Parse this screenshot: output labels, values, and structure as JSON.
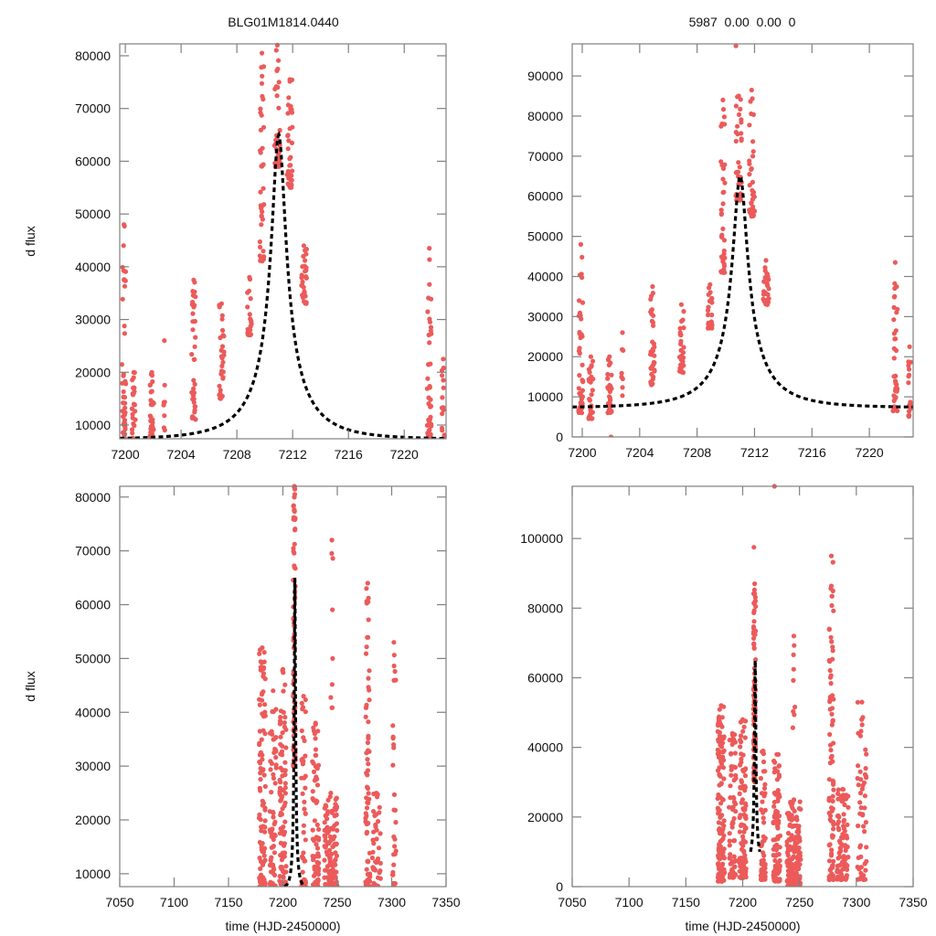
{
  "figure": {
    "titles": {
      "left": "BLG01M1814.0440",
      "right": "5987  0.00  0.00  0"
    },
    "point_color": "#ec5a5a",
    "model_color": "#000000"
  },
  "chart_data": [
    {
      "id": "top-left",
      "type": "scatter",
      "title": "BLG01M1814.0440",
      "xlabel": "",
      "ylabel": "d flux",
      "xlim": [
        7199.6,
        7223.0
      ],
      "ylim": [
        7400,
        82250
      ],
      "xticks": [
        7200,
        7204,
        7208,
        7212,
        7216,
        7220
      ],
      "yticks": [
        10000,
        20000,
        30000,
        40000,
        50000,
        60000,
        70000,
        80000
      ],
      "grid": false,
      "model": {
        "type": "paczynski",
        "t0": 7211.0,
        "u0": 0.12,
        "tE": 4.2,
        "baseline": 7300,
        "peak": 65000
      },
      "clusters": [
        {
          "t": 7199.9,
          "spread": 0.15,
          "ymin": 7500,
          "ymax": 48000,
          "n": 40
        },
        {
          "t": 7200.6,
          "spread": 0.12,
          "ymin": 7500,
          "ymax": 20000,
          "n": 22
        },
        {
          "t": 7201.9,
          "spread": 0.15,
          "ymin": 7600,
          "ymax": 20000,
          "n": 30
        },
        {
          "t": 7202.8,
          "spread": 0.06,
          "ymin": 9000,
          "ymax": 26000,
          "n": 7
        },
        {
          "t": 7204.9,
          "spread": 0.15,
          "ymin": 11000,
          "ymax": 37500,
          "n": 35
        },
        {
          "t": 7206.9,
          "spread": 0.18,
          "ymin": 15000,
          "ymax": 33000,
          "n": 30
        },
        {
          "t": 7208.9,
          "spread": 0.15,
          "ymin": 27000,
          "ymax": 38000,
          "n": 22
        },
        {
          "t": 7209.8,
          "spread": 0.15,
          "ymin": 41000,
          "ymax": 80500,
          "n": 40
        },
        {
          "t": 7210.9,
          "spread": 0.2,
          "ymin": 59000,
          "ymax": 82000,
          "n": 35
        },
        {
          "t": 7211.8,
          "spread": 0.2,
          "ymin": 55000,
          "ymax": 75500,
          "n": 35
        },
        {
          "t": 7212.8,
          "spread": 0.2,
          "ymin": 33000,
          "ymax": 44000,
          "n": 30
        },
        {
          "t": 7221.8,
          "spread": 0.15,
          "ymin": 7500,
          "ymax": 43500,
          "n": 40
        },
        {
          "t": 7222.8,
          "spread": 0.1,
          "ymin": 7500,
          "ymax": 22500,
          "n": 15
        }
      ]
    },
    {
      "id": "top-right",
      "type": "scatter",
      "title": "5987  0.00  0.00  0",
      "xlabel": "",
      "ylabel": "",
      "xlim": [
        7199.3,
        7223.05
      ],
      "ylim": [
        0,
        98000
      ],
      "xticks": [
        7200,
        7204,
        7208,
        7212,
        7216,
        7220
      ],
      "yticks": [
        0,
        10000,
        20000,
        30000,
        40000,
        50000,
        60000,
        70000,
        80000,
        90000
      ],
      "grid": false,
      "model": {
        "type": "paczynski",
        "t0": 7211.0,
        "u0": 0.12,
        "tE": 4.2,
        "baseline": 7300,
        "peak": 65000
      },
      "clusters": [
        {
          "t": 7199.9,
          "spread": 0.15,
          "ymin": 6000,
          "ymax": 48000,
          "n": 45
        },
        {
          "t": 7200.6,
          "spread": 0.15,
          "ymin": 4500,
          "ymax": 20000,
          "n": 30
        },
        {
          "t": 7201.9,
          "spread": 0.15,
          "ymin": 6000,
          "ymax": 20000,
          "n": 30
        },
        {
          "t": 7202.0,
          "spread": 0.01,
          "ymin": 0,
          "ymax": 200,
          "n": 1
        },
        {
          "t": 7202.8,
          "spread": 0.06,
          "ymin": 9000,
          "ymax": 26000,
          "n": 7
        },
        {
          "t": 7204.9,
          "spread": 0.15,
          "ymin": 13000,
          "ymax": 37500,
          "n": 35
        },
        {
          "t": 7206.9,
          "spread": 0.18,
          "ymin": 16000,
          "ymax": 33000,
          "n": 30
        },
        {
          "t": 7208.9,
          "spread": 0.15,
          "ymin": 27000,
          "ymax": 38000,
          "n": 22
        },
        {
          "t": 7209.8,
          "spread": 0.15,
          "ymin": 41000,
          "ymax": 84000,
          "n": 40
        },
        {
          "t": 7210.9,
          "spread": 0.2,
          "ymin": 59000,
          "ymax": 85000,
          "n": 35
        },
        {
          "t": 7210.7,
          "spread": 0.01,
          "ymin": 97500,
          "ymax": 97500,
          "n": 1
        },
        {
          "t": 7211.8,
          "spread": 0.2,
          "ymin": 55000,
          "ymax": 86500,
          "n": 35
        },
        {
          "t": 7212.8,
          "spread": 0.2,
          "ymin": 33000,
          "ymax": 44000,
          "n": 30
        },
        {
          "t": 7221.8,
          "spread": 0.15,
          "ymin": 6500,
          "ymax": 43500,
          "n": 40
        },
        {
          "t": 7222.8,
          "spread": 0.1,
          "ymin": 5000,
          "ymax": 22500,
          "n": 15
        }
      ]
    },
    {
      "id": "bottom-left",
      "type": "scatter",
      "title": "",
      "xlabel": "time (HJD-2450000)",
      "ylabel": "d flux",
      "xlim": [
        7050,
        7350
      ],
      "ylim": [
        7600,
        82000
      ],
      "xticks": [
        7050,
        7100,
        7150,
        7200,
        7250,
        7300,
        7350
      ],
      "yticks": [
        10000,
        20000,
        30000,
        40000,
        50000,
        60000,
        70000,
        80000
      ],
      "grid": false,
      "model": {
        "type": "paczynski",
        "t0": 7211.0,
        "u0": 0.12,
        "tE": 4.2,
        "baseline": 7300,
        "peak": 65000
      },
      "clusters": [
        {
          "t": 7181,
          "spread": 3,
          "ymin": 7600,
          "ymax": 52000,
          "n": 110
        },
        {
          "t": 7191,
          "spread": 3,
          "ymin": 7600,
          "ymax": 44000,
          "n": 60
        },
        {
          "t": 7200,
          "spread": 3,
          "ymin": 7600,
          "ymax": 48000,
          "n": 90
        },
        {
          "t": 7210.5,
          "spread": 1,
          "ymin": 30000,
          "ymax": 82000,
          "n": 90
        },
        {
          "t": 7219,
          "spread": 2,
          "ymin": 7600,
          "ymax": 43000,
          "n": 50
        },
        {
          "t": 7230,
          "spread": 3,
          "ymin": 7600,
          "ymax": 38000,
          "n": 70
        },
        {
          "t": 7244,
          "spread": 6,
          "ymin": 7600,
          "ymax": 25000,
          "n": 110
        },
        {
          "t": 7245,
          "spread": 1,
          "ymin": 40000,
          "ymax": 72000,
          "n": 8
        },
        {
          "t": 7278,
          "spread": 2,
          "ymin": 7600,
          "ymax": 64000,
          "n": 70
        },
        {
          "t": 7286,
          "spread": 4,
          "ymin": 7600,
          "ymax": 25000,
          "n": 40
        },
        {
          "t": 7302,
          "spread": 2,
          "ymin": 7600,
          "ymax": 53000,
          "n": 30
        }
      ]
    },
    {
      "id": "bottom-right",
      "type": "scatter",
      "title": "",
      "xlabel": "time (HJD-2450000)",
      "ylabel": "",
      "xlim": [
        7050,
        7350
      ],
      "ylim": [
        0,
        115000
      ],
      "xticks": [
        7050,
        7100,
        7150,
        7200,
        7250,
        7300,
        7350
      ],
      "yticks": [
        0,
        20000,
        40000,
        60000,
        80000,
        100000
      ],
      "grid": false,
      "model": {
        "type": "paczynski",
        "t0": 7211.0,
        "u0": 0.12,
        "tE": 4.2,
        "baseline": 7300,
        "peak": 65000
      },
      "clusters": [
        {
          "t": 7181,
          "spread": 3,
          "ymin": 1500,
          "ymax": 52000,
          "n": 140
        },
        {
          "t": 7191,
          "spread": 3,
          "ymin": 2500,
          "ymax": 44000,
          "n": 70
        },
        {
          "t": 7200,
          "spread": 3,
          "ymin": 2500,
          "ymax": 48000,
          "n": 100
        },
        {
          "t": 7210.5,
          "spread": 1,
          "ymin": 30000,
          "ymax": 87000,
          "n": 100
        },
        {
          "t": 7210,
          "spread": 0.1,
          "ymin": 97500,
          "ymax": 97500,
          "n": 1
        },
        {
          "t": 7218,
          "spread": 2,
          "ymin": 2000,
          "ymax": 39000,
          "n": 60
        },
        {
          "t": 7230,
          "spread": 3,
          "ymin": 1500,
          "ymax": 38000,
          "n": 90
        },
        {
          "t": 7245,
          "spread": 6,
          "ymin": 0,
          "ymax": 25000,
          "n": 180
        },
        {
          "t": 7245,
          "spread": 1,
          "ymin": 40000,
          "ymax": 72000,
          "n": 8
        },
        {
          "t": 7228,
          "spread": 0.1,
          "ymin": 115000,
          "ymax": 115000,
          "n": 1
        },
        {
          "t": 7278,
          "spread": 2,
          "ymin": 2000,
          "ymax": 95000,
          "n": 90
        },
        {
          "t": 7288,
          "spread": 5,
          "ymin": 2000,
          "ymax": 28000,
          "n": 90
        },
        {
          "t": 7305,
          "spread": 4,
          "ymin": 2000,
          "ymax": 53000,
          "n": 55
        }
      ]
    }
  ]
}
